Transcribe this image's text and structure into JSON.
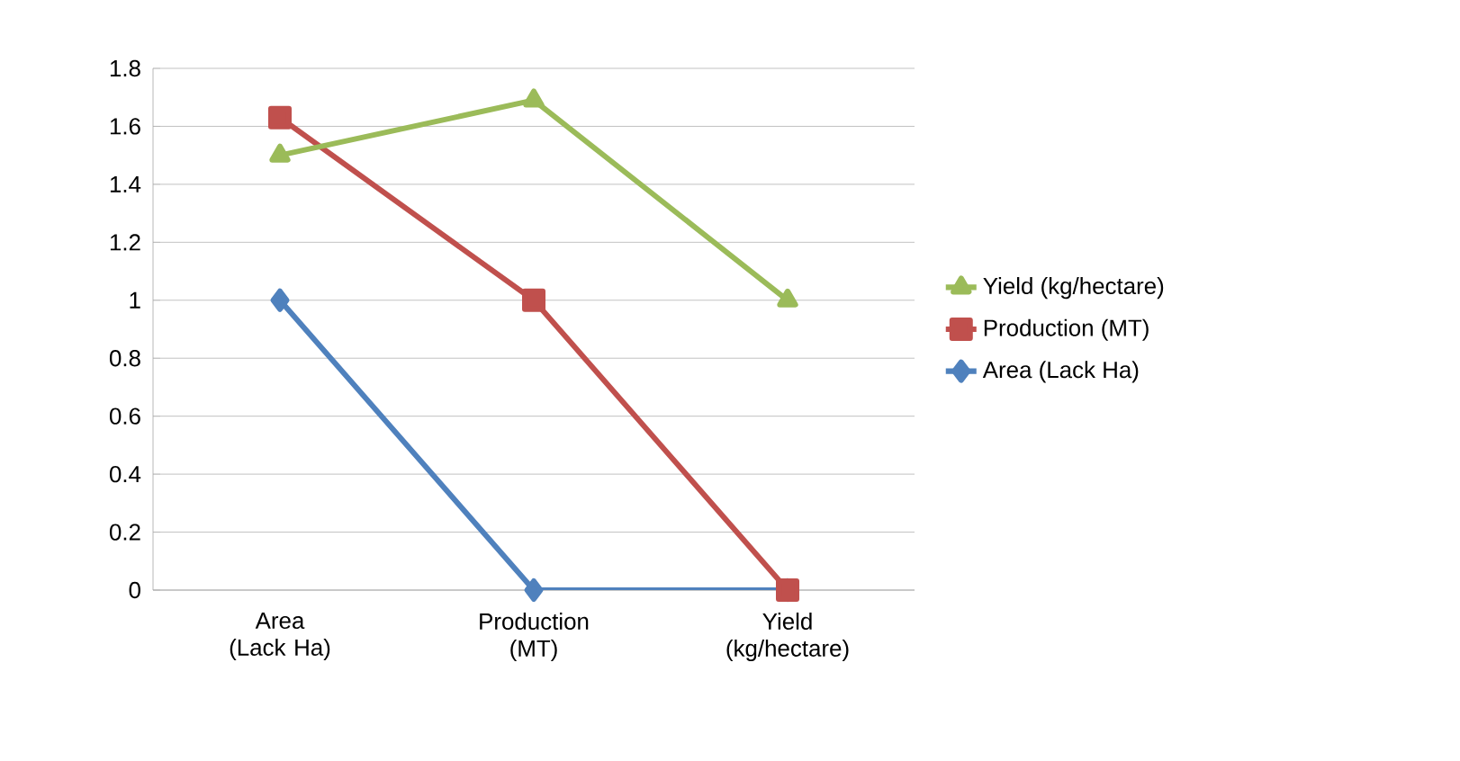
{
  "chart_data": {
    "type": "line",
    "categories": [
      "Area (Lack Ha)",
      "Production (MT)",
      "Yield (kg/hectare)"
    ],
    "series": [
      {
        "name": "Area (Lack Ha)",
        "color": "#4f81bd",
        "marker": "diamond",
        "values": [
          1,
          0,
          0
        ]
      },
      {
        "name": "Production (MT)",
        "color": "#c0504d",
        "marker": "square",
        "values": [
          1.63,
          1,
          0
        ]
      },
      {
        "name": "Yield (kg/hectare)",
        "color": "#9bbb59",
        "marker": "triangle",
        "values": [
          1.5,
          1.69,
          1
        ]
      }
    ],
    "ylim": [
      0,
      1.8
    ],
    "yticks": [
      0,
      0.2,
      0.4,
      0.6,
      0.8,
      1,
      1.2,
      1.4,
      1.6,
      1.8
    ],
    "grid": "y",
    "legend": "right",
    "line_style": "solid"
  }
}
